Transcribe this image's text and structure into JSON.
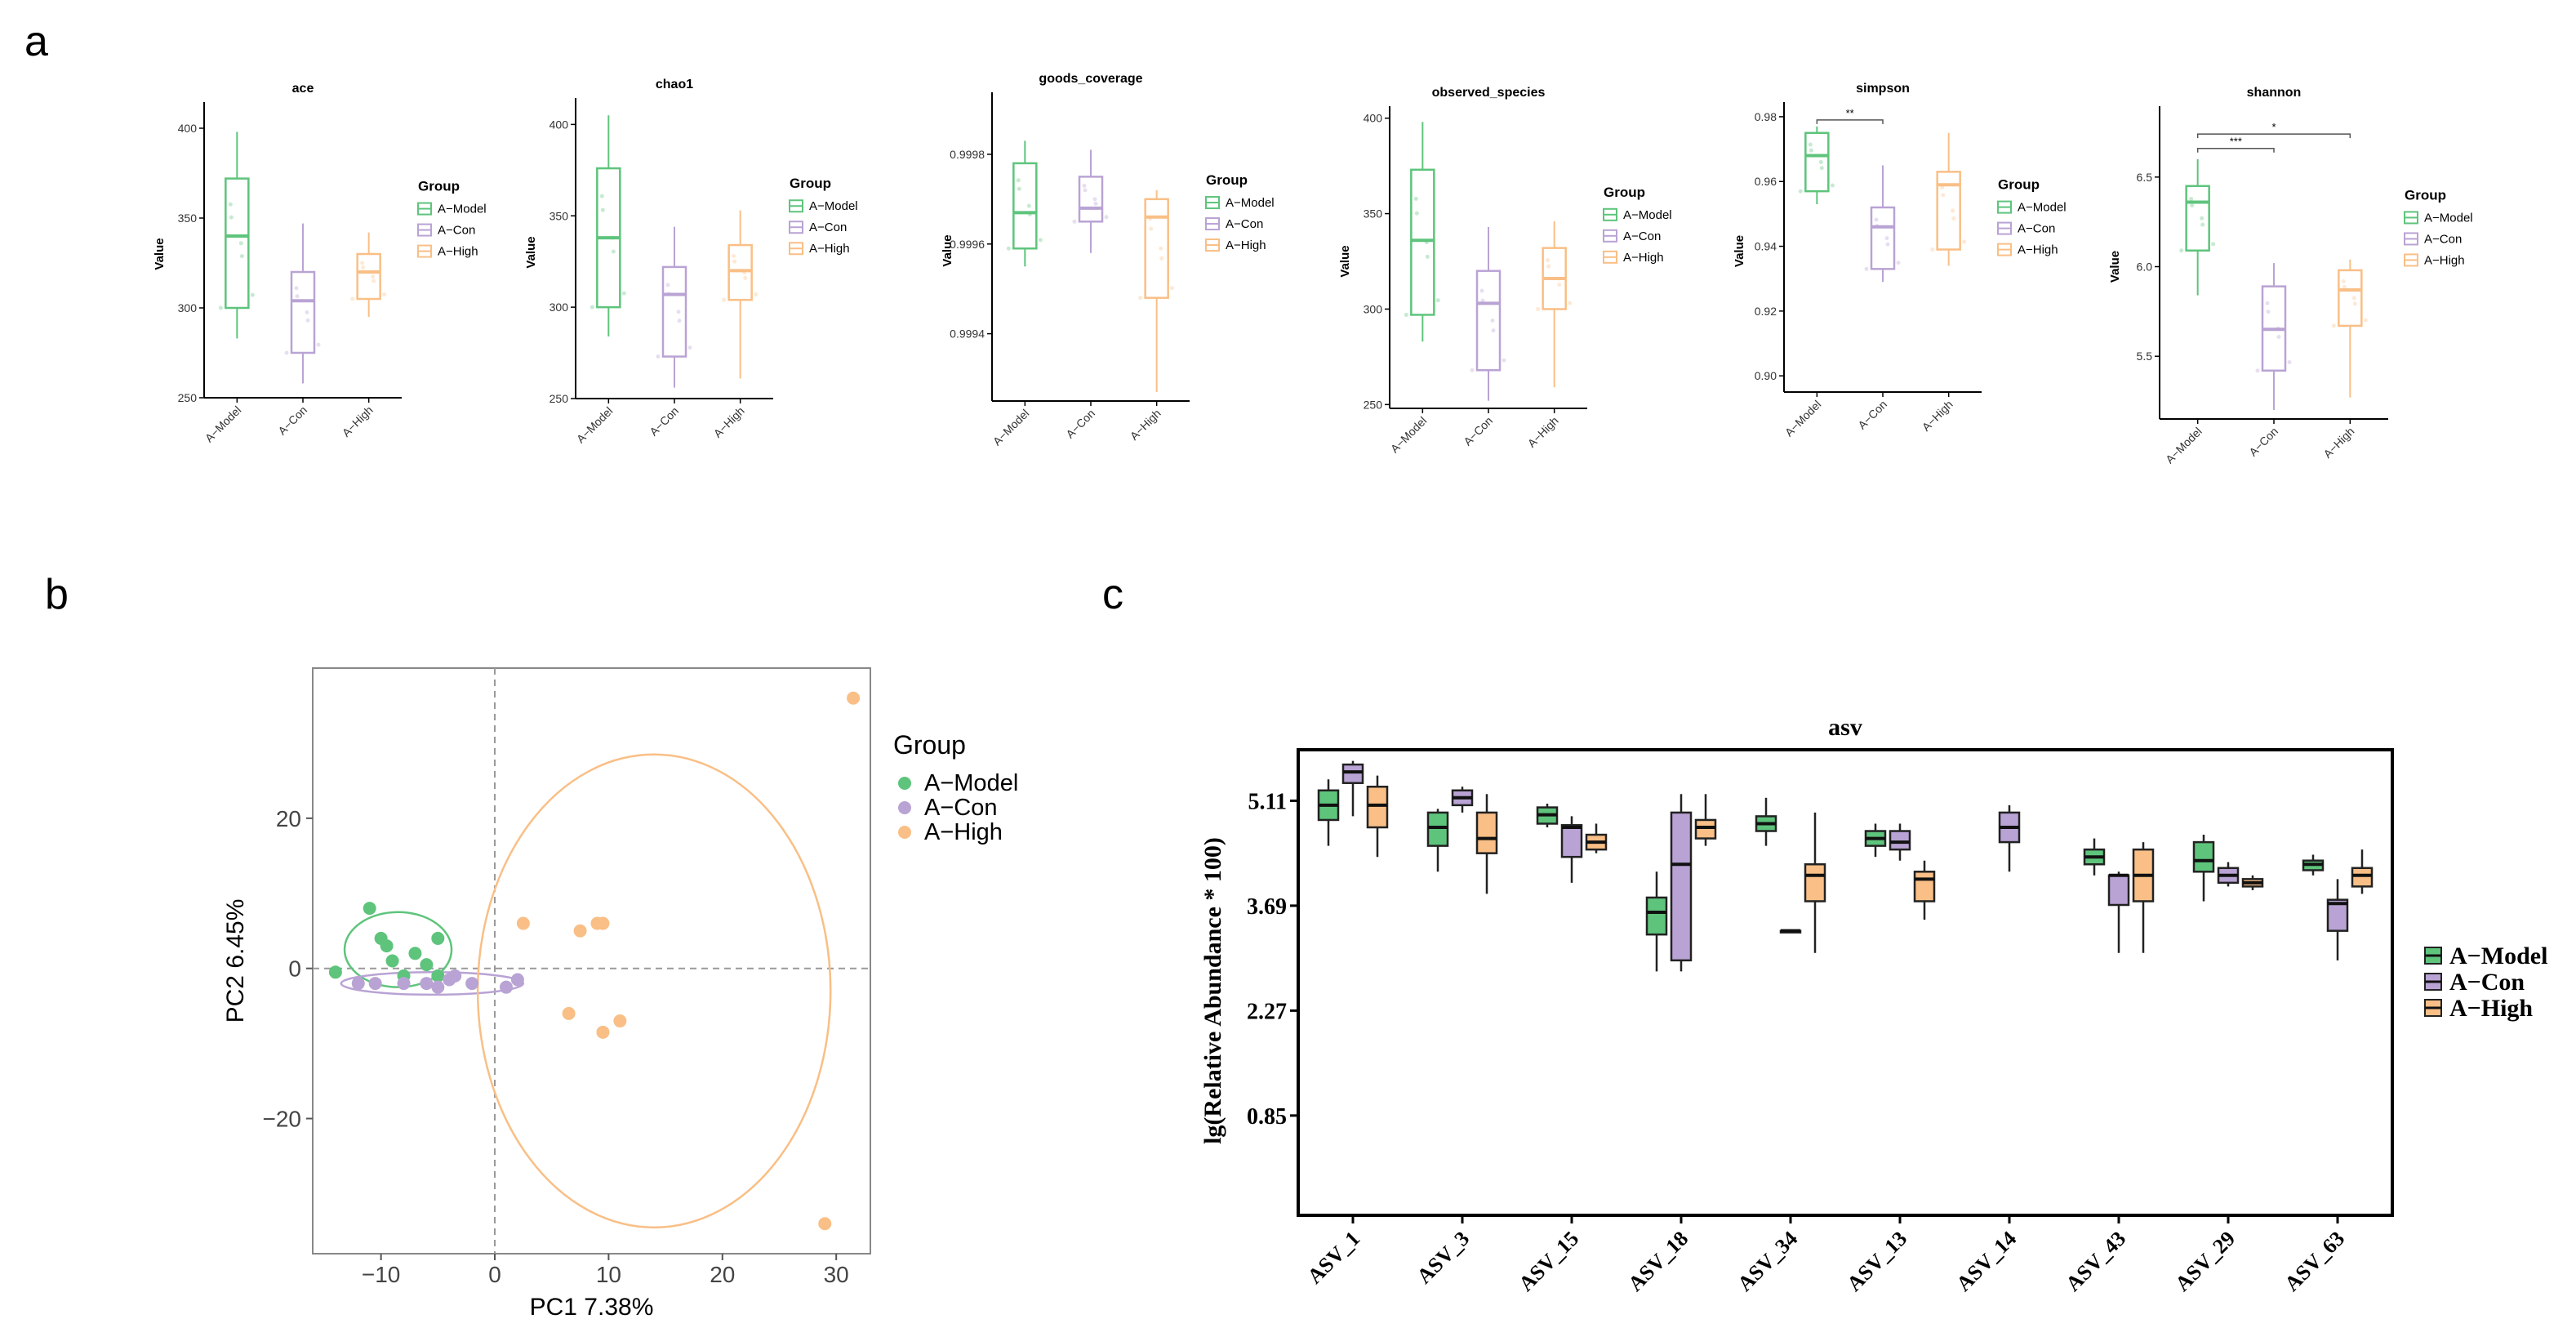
{
  "colors": {
    "model": "#5ec47c",
    "con": "#b9a3d4",
    "high": "#f9bf86",
    "modelDark": "#34a853",
    "conDark": "#a58cc7",
    "highDark": "#f4a261",
    "axis": "#000000",
    "grid": "#9a9a9a"
  },
  "panel_labels": {
    "a": "a",
    "b": "b",
    "c": "c"
  },
  "groups": [
    "A−Model",
    "A−Con",
    "A−High"
  ],
  "chart_data": [
    {
      "id": "ace",
      "type": "box",
      "title": "ace",
      "ylabel": "Value",
      "legend_title": "Group",
      "ylim": [
        250,
        410
      ],
      "yticks": [
        250,
        300,
        350,
        400
      ],
      "ytick_labels": [
        "250",
        "300",
        "350",
        "400"
      ],
      "categories": [
        "A−Model",
        "A−Con",
        "A−High"
      ],
      "boxes": [
        {
          "min": 283,
          "q1": 300,
          "median": 340,
          "q3": 372,
          "max": 398
        },
        {
          "min": 258,
          "q1": 275,
          "median": 304,
          "q3": 320,
          "max": 347
        },
        {
          "min": 295,
          "q1": 305,
          "median": 320,
          "q3": 330,
          "max": 342
        }
      ],
      "sig": []
    },
    {
      "id": "chao1",
      "type": "box",
      "title": "chao1",
      "ylabel": "Value",
      "legend_title": "Group",
      "ylim": [
        250,
        410
      ],
      "yticks": [
        250,
        300,
        350,
        400
      ],
      "ytick_labels": [
        "250",
        "300",
        "350",
        "400"
      ],
      "categories": [
        "A−Model",
        "A−Con",
        "A−High"
      ],
      "boxes": [
        {
          "min": 284,
          "q1": 300,
          "median": 338,
          "q3": 376,
          "max": 405
        },
        {
          "min": 256,
          "q1": 273,
          "median": 307,
          "q3": 322,
          "max": 344
        },
        {
          "min": 261,
          "q1": 304,
          "median": 320,
          "q3": 334,
          "max": 353
        }
      ],
      "sig": []
    },
    {
      "id": "goods_coverage",
      "type": "box",
      "title": "goods_coverage",
      "ylabel": "Value",
      "legend_title": "Group",
      "ylim": [
        0.99925,
        0.99992
      ],
      "yticks": [
        0.9994,
        0.9996,
        0.9998
      ],
      "ytick_labels": [
        "0.9994",
        "0.9996",
        "0.9998"
      ],
      "categories": [
        "A−Model",
        "A−Con",
        "A−High"
      ],
      "boxes": [
        {
          "min": 0.99955,
          "q1": 0.99959,
          "median": 0.99967,
          "q3": 0.99978,
          "max": 0.99983
        },
        {
          "min": 0.99958,
          "q1": 0.99965,
          "median": 0.99968,
          "q3": 0.99975,
          "max": 0.99981
        },
        {
          "min": 0.99927,
          "q1": 0.99948,
          "median": 0.99966,
          "q3": 0.9997,
          "max": 0.99972
        }
      ],
      "sig": []
    },
    {
      "id": "observed_species",
      "type": "box",
      "title": "observed_species",
      "ylabel": "Value",
      "legend_title": "Group",
      "ylim": [
        248,
        402
      ],
      "yticks": [
        250,
        300,
        350,
        400
      ],
      "ytick_labels": [
        "250",
        "300",
        "350",
        "400"
      ],
      "categories": [
        "A−Model",
        "A−Con",
        "A−High"
      ],
      "boxes": [
        {
          "min": 283,
          "q1": 297,
          "median": 336,
          "q3": 373,
          "max": 398
        },
        {
          "min": 252,
          "q1": 268,
          "median": 303,
          "q3": 320,
          "max": 343
        },
        {
          "min": 259,
          "q1": 300,
          "median": 316,
          "q3": 332,
          "max": 346
        }
      ],
      "sig": []
    },
    {
      "id": "simpson",
      "type": "box",
      "title": "simpson",
      "ylabel": "Value",
      "legend_title": "Group",
      "ylim": [
        0.895,
        0.982
      ],
      "yticks": [
        0.9,
        0.92,
        0.94,
        0.96,
        0.98
      ],
      "ytick_labels": [
        "0.90",
        "0.92",
        "0.94",
        "0.96",
        "0.98"
      ],
      "categories": [
        "A−Model",
        "A−Con",
        "A−High"
      ],
      "boxes": [
        {
          "min": 0.953,
          "q1": 0.957,
          "median": 0.968,
          "q3": 0.975,
          "max": 0.977
        },
        {
          "min": 0.929,
          "q1": 0.933,
          "median": 0.946,
          "q3": 0.952,
          "max": 0.965
        },
        {
          "min": 0.934,
          "q1": 0.939,
          "median": 0.959,
          "q3": 0.963,
          "max": 0.975
        }
      ],
      "sig": [
        {
          "from": 0,
          "to": 1,
          "level": 0.979,
          "label": "**"
        }
      ]
    },
    {
      "id": "shannon",
      "type": "box",
      "title": "shannon",
      "ylabel": "Value",
      "legend_title": "Group",
      "ylim": [
        5.15,
        6.85
      ],
      "yticks": [
        5.5,
        6.0,
        6.5
      ],
      "ytick_labels": [
        "5.5",
        "6.0",
        "6.5"
      ],
      "categories": [
        "A−Model",
        "A−Con",
        "A−High"
      ],
      "boxes": [
        {
          "min": 5.84,
          "q1": 6.09,
          "median": 6.36,
          "q3": 6.45,
          "max": 6.6
        },
        {
          "min": 5.2,
          "q1": 5.42,
          "median": 5.65,
          "q3": 5.89,
          "max": 6.02
        },
        {
          "min": 5.27,
          "q1": 5.67,
          "median": 5.87,
          "q3": 5.98,
          "max": 6.04
        }
      ],
      "sig": [
        {
          "from": 0,
          "to": 1,
          "level": 6.66,
          "label": "***"
        },
        {
          "from": 0,
          "to": 2,
          "level": 6.74,
          "label": "*"
        }
      ]
    },
    {
      "id": "pca",
      "type": "scatter",
      "xlabel": "PC1 7.38%",
      "ylabel": "PC2 6.45%",
      "legend_title": "Group",
      "xlim": [
        -16,
        33
      ],
      "ylim": [
        -38,
        40
      ],
      "xticks": [
        -10,
        0,
        10,
        20,
        30
      ],
      "xtick_labels": [
        "−10",
        "0",
        "10",
        "20",
        "30"
      ],
      "yticks": [
        -20,
        0,
        20
      ],
      "ytick_labels": [
        "−20",
        "0",
        "20"
      ],
      "series": [
        {
          "name": "A−Model",
          "x": [
            -14,
            -11,
            -10,
            -9,
            -8,
            -7,
            -6,
            -5,
            -5,
            -9.5
          ],
          "y": [
            -0.5,
            8,
            4,
            1,
            -1,
            2,
            0.5,
            4,
            -1,
            3
          ]
        },
        {
          "name": "A−Con",
          "x": [
            -12,
            -10.5,
            -8,
            -6,
            -4,
            -3.5,
            -2,
            1,
            2,
            -5
          ],
          "y": [
            -2,
            -2,
            -2,
            -2,
            -1.5,
            -1,
            -2,
            -2.5,
            -1.5,
            -2.5
          ]
        },
        {
          "name": "A−High",
          "x": [
            2.5,
            7.5,
            9,
            6.5,
            9.5,
            11,
            29,
            31.5,
            9.5
          ],
          "y": [
            6,
            5,
            6,
            -6,
            -8.5,
            -7,
            -34,
            36,
            6
          ]
        }
      ],
      "ellipses": [
        {
          "series": "A−Model",
          "cx": -8.5,
          "cy": 2.5,
          "rx": 4.7,
          "ry": 5
        },
        {
          "series": "A−Con",
          "cx": -5.5,
          "cy": -2,
          "rx": 8,
          "ry": 1.5
        },
        {
          "series": "A−High",
          "cx": 14,
          "cy": -3,
          "rx": 15.5,
          "ry": 31.5
        }
      ]
    },
    {
      "id": "asv",
      "type": "box",
      "title": "asv",
      "ylabel": "lg(Relative Abundance * 100)",
      "legend_title": "",
      "ylim": [
        -0.5,
        5.8
      ],
      "yticks": [
        0.85,
        2.27,
        3.69,
        5.11
      ],
      "ytick_labels": [
        "0.85",
        "2.27",
        "3.69",
        "5.11"
      ],
      "categories": [
        "ASV_1",
        "ASV_3",
        "ASV_15",
        "ASV_18",
        "ASV_34",
        "ASV_13",
        "ASV_14",
        "ASV_43",
        "ASV_29",
        "ASV_63"
      ],
      "series": [
        {
          "name": "A−Model",
          "boxes": [
            {
              "min": 4.5,
              "q1": 4.85,
              "median": 5.05,
              "q3": 5.25,
              "max": 5.4
            },
            {
              "min": 4.15,
              "q1": 4.5,
              "median": 4.75,
              "q3": 4.95,
              "max": 5.0
            },
            {
              "min": 4.75,
              "q1": 4.8,
              "median": 4.92,
              "q3": 5.02,
              "max": 5.07
            },
            {
              "min": 2.8,
              "q1": 3.3,
              "median": 3.6,
              "q3": 3.8,
              "max": 4.15
            },
            {
              "min": 4.5,
              "q1": 4.7,
              "median": 4.8,
              "q3": 4.9,
              "max": 5.15
            },
            {
              "min": 4.35,
              "q1": 4.5,
              "median": 4.6,
              "q3": 4.7,
              "max": 4.8
            },
            null,
            {
              "min": 4.1,
              "q1": 4.25,
              "median": 4.35,
              "q3": 4.45,
              "max": 4.6
            },
            {
              "min": 3.75,
              "q1": 4.15,
              "median": 4.3,
              "q3": 4.55,
              "max": 4.65
            },
            {
              "min": 4.1,
              "q1": 4.17,
              "median": 4.25,
              "q3": 4.3,
              "max": 4.38
            }
          ]
        },
        {
          "name": "A−Con",
          "boxes": [
            {
              "min": 4.9,
              "q1": 5.35,
              "median": 5.5,
              "q3": 5.6,
              "max": 5.65
            },
            {
              "min": 4.95,
              "q1": 5.05,
              "median": 5.15,
              "q3": 5.25,
              "max": 5.3
            },
            {
              "min": 4.0,
              "q1": 4.35,
              "median": 4.75,
              "q3": 4.78,
              "max": 4.9
            },
            {
              "min": 2.8,
              "q1": 2.95,
              "median": 4.25,
              "q3": 4.95,
              "max": 5.2
            },
            {
              "min": 3.35,
              "q1": 3.35,
              "median": 3.35,
              "q3": 3.35,
              "max": 3.35
            },
            {
              "min": 4.3,
              "q1": 4.45,
              "median": 4.55,
              "q3": 4.7,
              "max": 4.8
            },
            {
              "min": 4.15,
              "q1": 4.55,
              "median": 4.75,
              "q3": 4.95,
              "max": 5.05
            },
            {
              "min": 3.05,
              "q1": 3.7,
              "median": 4.1,
              "q3": 4.1,
              "max": 4.15
            },
            {
              "min": 3.95,
              "q1": 4.0,
              "median": 4.1,
              "q3": 4.2,
              "max": 4.28
            },
            {
              "min": 2.95,
              "q1": 3.35,
              "median": 3.72,
              "q3": 3.77,
              "max": 4.05
            }
          ]
        },
        {
          "name": "A−High",
          "boxes": [
            {
              "min": 4.35,
              "q1": 4.75,
              "median": 5.05,
              "q3": 5.3,
              "max": 5.45
            },
            {
              "min": 3.85,
              "q1": 4.4,
              "median": 4.6,
              "q3": 4.95,
              "max": 5.2
            },
            {
              "min": 4.4,
              "q1": 4.45,
              "median": 4.55,
              "q3": 4.65,
              "max": 4.8
            },
            {
              "min": 4.5,
              "q1": 4.6,
              "median": 4.75,
              "q3": 4.85,
              "max": 5.2
            },
            {
              "min": 3.05,
              "q1": 3.75,
              "median": 4.1,
              "q3": 4.25,
              "max": 4.95
            },
            {
              "min": 3.5,
              "q1": 3.75,
              "median": 4.05,
              "q3": 4.15,
              "max": 4.3
            },
            null,
            {
              "min": 3.05,
              "q1": 3.75,
              "median": 4.1,
              "q3": 4.45,
              "max": 4.55
            },
            {
              "min": 3.9,
              "q1": 3.95,
              "median": 4.0,
              "q3": 4.05,
              "max": 4.1
            },
            {
              "min": 3.85,
              "q1": 3.95,
              "median": 4.1,
              "q3": 4.2,
              "max": 4.45
            }
          ]
        }
      ]
    }
  ]
}
